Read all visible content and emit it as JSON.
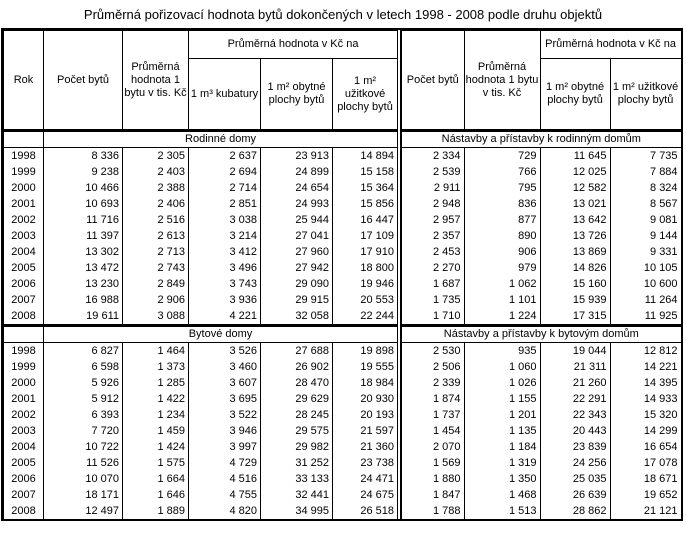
{
  "title": "Průměrná pořizovací hodnota bytů dokončených v letech 1998 - 2008 podle druhu objektů",
  "table": {
    "left": {
      "columns": [
        "Rok",
        "Počet bytů",
        "Průměrná hodnota 1 bytu v tis. Kč",
        "1 m³ kubatury",
        "1 m² obytné plochy bytů",
        "1 m² užitkové plochy bytů"
      ],
      "group_header": "Průměrná hodnota v Kč na",
      "sections": [
        {
          "name": "Rodinné domy",
          "rows": [
            [
              "1998",
              "8 336",
              "2 305",
              "2 637",
              "23 913",
              "14 894"
            ],
            [
              "1999",
              "9 238",
              "2 403",
              "2 694",
              "24 899",
              "15 158"
            ],
            [
              "2000",
              "10 466",
              "2 388",
              "2 714",
              "24 654",
              "15 364"
            ],
            [
              "2001",
              "10 693",
              "2 406",
              "2 851",
              "24 993",
              "15 856"
            ],
            [
              "2002",
              "11 716",
              "2 516",
              "3 038",
              "25 944",
              "16 447"
            ],
            [
              "2003",
              "11 397",
              "2 613",
              "3 214",
              "27 041",
              "17 109"
            ],
            [
              "2004",
              "13 302",
              "2 713",
              "3 412",
              "27 960",
              "17 910"
            ],
            [
              "2005",
              "13 472",
              "2 743",
              "3 496",
              "27 942",
              "18 800"
            ],
            [
              "2006",
              "13 230",
              "2 849",
              "3 743",
              "29 090",
              "19 946"
            ],
            [
              "2007",
              "16 988",
              "2 906",
              "3 936",
              "29 915",
              "20 553"
            ],
            [
              "2008",
              "19 611",
              "3 088",
              "4 221",
              "32 058",
              "22 244"
            ]
          ]
        },
        {
          "name": "Bytové domy",
          "rows": [
            [
              "1998",
              "6 827",
              "1 464",
              "3 526",
              "27 688",
              "19 898"
            ],
            [
              "1999",
              "6 598",
              "1 373",
              "3 460",
              "26 902",
              "19 555"
            ],
            [
              "2000",
              "5 926",
              "1 285",
              "3 607",
              "28 470",
              "18 984"
            ],
            [
              "2001",
              "5 912",
              "1 422",
              "3 695",
              "29 629",
              "20 930"
            ],
            [
              "2002",
              "6 393",
              "1 234",
              "3 522",
              "28 245",
              "20 193"
            ],
            [
              "2003",
              "7 720",
              "1 459",
              "3 946",
              "29 575",
              "21 597"
            ],
            [
              "2004",
              "10 722",
              "1 424",
              "3 997",
              "29 982",
              "21 360"
            ],
            [
              "2005",
              "11 526",
              "1 575",
              "4 729",
              "31 252",
              "23 738"
            ],
            [
              "2006",
              "10 070",
              "1 664",
              "4 516",
              "33 133",
              "24 471"
            ],
            [
              "2007",
              "18 171",
              "1 646",
              "4 755",
              "32 441",
              "24 675"
            ],
            [
              "2008",
              "12 497",
              "1 889",
              "4 820",
              "34 995",
              "26 518"
            ]
          ]
        }
      ]
    },
    "right": {
      "columns": [
        "Počet bytů",
        "Průměrná hodnota 1 bytu v tis. Kč",
        "1 m² obytné plochy bytů",
        "1 m² užitkové plochy bytů"
      ],
      "group_header": "Průměrná hodnota v Kč na",
      "sections": [
        {
          "name": "Nástavby a přístavby k rodinným domům",
          "rows": [
            [
              "2 334",
              "729",
              "11 645",
              "7 735"
            ],
            [
              "2 539",
              "766",
              "12 025",
              "7 884"
            ],
            [
              "2 911",
              "795",
              "12 582",
              "8 324"
            ],
            [
              "2 948",
              "836",
              "13 021",
              "8 567"
            ],
            [
              "2 957",
              "877",
              "13 642",
              "9 081"
            ],
            [
              "2 357",
              "890",
              "13 726",
              "9 144"
            ],
            [
              "2 453",
              "906",
              "13 869",
              "9 331"
            ],
            [
              "2 270",
              "979",
              "14 826",
              "10 105"
            ],
            [
              "1 687",
              "1 062",
              "15 160",
              "10 600"
            ],
            [
              "1 735",
              "1 101",
              "15 939",
              "11 264"
            ],
            [
              "1 710",
              "1 224",
              "17 315",
              "11 925"
            ]
          ]
        },
        {
          "name": "Nástavby a přístavby k bytovým domům",
          "rows": [
            [
              "2 530",
              "935",
              "19 044",
              "12 812"
            ],
            [
              "2 506",
              "1 060",
              "21 311",
              "14 221"
            ],
            [
              "2 339",
              "1 026",
              "21 260",
              "14 395"
            ],
            [
              "1 874",
              "1 155",
              "22 291",
              "14 933"
            ],
            [
              "1 737",
              "1 201",
              "22 343",
              "15 320"
            ],
            [
              "1 454",
              "1 135",
              "20 443",
              "14 299"
            ],
            [
              "2 070",
              "1 184",
              "23 839",
              "16 654"
            ],
            [
              "1 569",
              "1 319",
              "24 256",
              "17 078"
            ],
            [
              "1 880",
              "1 350",
              "25 035",
              "18 671"
            ],
            [
              "1 847",
              "1 468",
              "26 639",
              "19 652"
            ],
            [
              "1 788",
              "1 513",
              "28 862",
              "21 121"
            ]
          ]
        }
      ]
    }
  }
}
